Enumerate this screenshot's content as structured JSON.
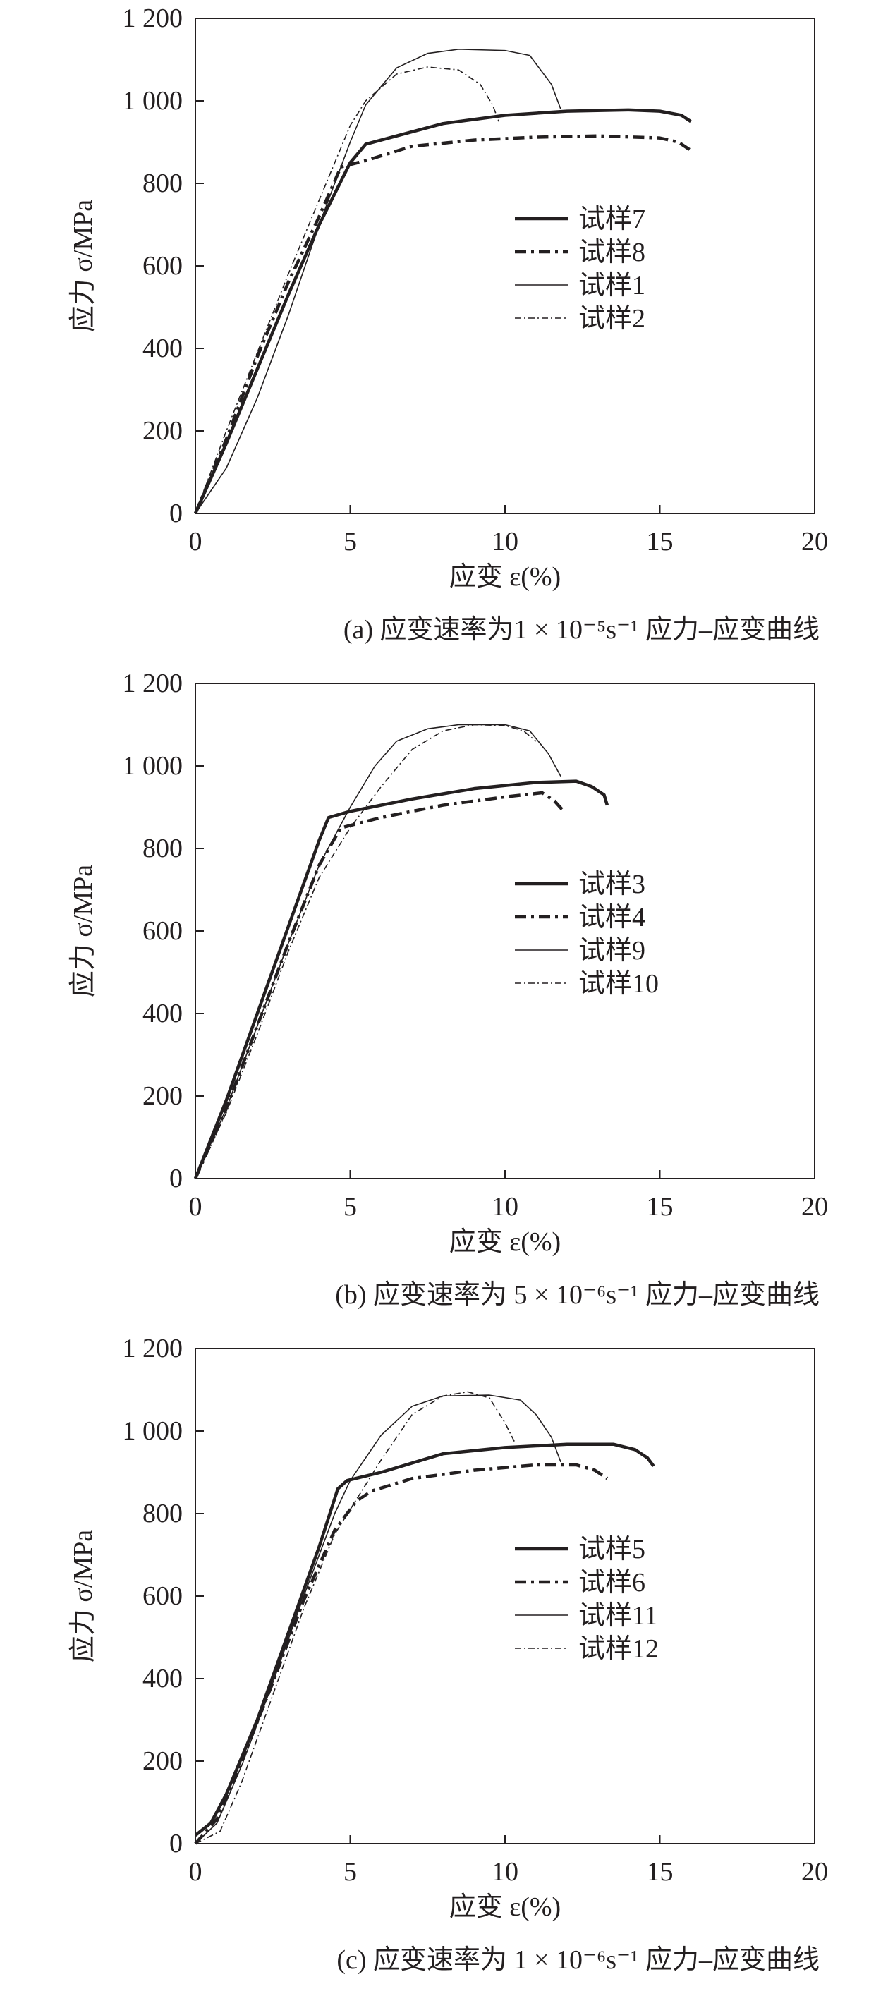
{
  "chart_data": [
    {
      "type": "line",
      "caption": "(a) 应变速率为1 × 10⁻⁵s⁻¹ 应力–应变曲线",
      "xlabel": "应变 ε(%)",
      "ylabel": "应力 σ/MPa",
      "xlim": [
        0,
        20
      ],
      "ylim": [
        0,
        1200
      ],
      "xticks": [
        0,
        5,
        10,
        15,
        20
      ],
      "xtick_labels": [
        "0",
        "5",
        "10",
        "15",
        "20"
      ],
      "yticks": [
        0,
        200,
        400,
        600,
        800,
        1000,
        1200
      ],
      "ytick_labels": [
        "0",
        "200",
        "400",
        "600",
        "800",
        "1 000",
        "1 200"
      ],
      "grid": false,
      "legend_position": "center-right",
      "series": [
        {
          "name": "试样7",
          "style": "thick-solid",
          "points": [
            [
              0,
              0
            ],
            [
              1,
              170
            ],
            [
              2,
              350
            ],
            [
              3,
              530
            ],
            [
              4,
              700
            ],
            [
              5,
              850
            ],
            [
              5.5,
              895
            ],
            [
              6,
              905
            ],
            [
              8,
              945
            ],
            [
              10,
              965
            ],
            [
              12,
              975
            ],
            [
              14,
              978
            ],
            [
              15,
              975
            ],
            [
              15.7,
              965
            ],
            [
              16,
              950
            ]
          ]
        },
        {
          "name": "试样8",
          "style": "thick-dashdot",
          "points": [
            [
              0,
              0
            ],
            [
              1,
              180
            ],
            [
              2,
              380
            ],
            [
              3,
              560
            ],
            [
              4,
              720
            ],
            [
              4.7,
              840
            ],
            [
              5.5,
              855
            ],
            [
              7,
              890
            ],
            [
              9,
              905
            ],
            [
              11,
              912
            ],
            [
              13,
              915
            ],
            [
              15,
              910
            ],
            [
              15.6,
              900
            ],
            [
              16,
              880
            ]
          ]
        },
        {
          "name": "试样1",
          "style": "thin-solid",
          "points": [
            [
              0,
              0
            ],
            [
              1,
              110
            ],
            [
              2,
              280
            ],
            [
              3,
              480
            ],
            [
              4,
              700
            ],
            [
              5,
              900
            ],
            [
              5.5,
              990
            ],
            [
              6.5,
              1080
            ],
            [
              7.5,
              1115
            ],
            [
              8.5,
              1125
            ],
            [
              10,
              1122
            ],
            [
              10.8,
              1110
            ],
            [
              11.5,
              1040
            ],
            [
              11.8,
              980
            ]
          ]
        },
        {
          "name": "试样2",
          "style": "thin-dashdot",
          "points": [
            [
              0,
              0
            ],
            [
              1,
              200
            ],
            [
              2,
              390
            ],
            [
              3,
              580
            ],
            [
              4,
              760
            ],
            [
              5,
              940
            ],
            [
              5.5,
              1000
            ],
            [
              6.5,
              1065
            ],
            [
              7.5,
              1082
            ],
            [
              8.5,
              1075
            ],
            [
              9.2,
              1040
            ],
            [
              9.6,
              990
            ],
            [
              9.8,
              950
            ]
          ]
        }
      ]
    },
    {
      "type": "line",
      "caption": "(b) 应变速率为 5 × 10⁻⁶s⁻¹ 应力–应变曲线",
      "xlabel": "应变 ε(%)",
      "ylabel": "应力 σ/MPa",
      "xlim": [
        0,
        20
      ],
      "ylim": [
        0,
        1200
      ],
      "xticks": [
        0,
        5,
        10,
        15,
        20
      ],
      "xtick_labels": [
        "0",
        "5",
        "10",
        "15",
        "20"
      ],
      "yticks": [
        0,
        200,
        400,
        600,
        800,
        1000,
        1200
      ],
      "ytick_labels": [
        "0",
        "200",
        "400",
        "600",
        "800",
        "1 000",
        "1 200"
      ],
      "grid": false,
      "legend_position": "center-right",
      "series": [
        {
          "name": "试样3",
          "style": "thick-solid",
          "points": [
            [
              0,
              0
            ],
            [
              1,
              190
            ],
            [
              2,
              400
            ],
            [
              3,
              610
            ],
            [
              4,
              820
            ],
            [
              4.3,
              875
            ],
            [
              5,
              890
            ],
            [
              7,
              920
            ],
            [
              9,
              945
            ],
            [
              11,
              960
            ],
            [
              12.3,
              963
            ],
            [
              12.8,
              950
            ],
            [
              13.2,
              930
            ],
            [
              13.3,
              905
            ]
          ]
        },
        {
          "name": "试样4",
          "style": "thick-dashdot",
          "points": [
            [
              0,
              0
            ],
            [
              1,
              170
            ],
            [
              2,
              370
            ],
            [
              3,
              570
            ],
            [
              4,
              760
            ],
            [
              4.7,
              850
            ],
            [
              6,
              875
            ],
            [
              8,
              905
            ],
            [
              10,
              925
            ],
            [
              11.2,
              935
            ],
            [
              11.6,
              915
            ],
            [
              11.9,
              890
            ]
          ]
        },
        {
          "name": "试样9",
          "style": "thin-solid",
          "points": [
            [
              0,
              0
            ],
            [
              1,
              170
            ],
            [
              2,
              370
            ],
            [
              3,
              570
            ],
            [
              4,
              760
            ],
            [
              5,
              900
            ],
            [
              5.8,
              1000
            ],
            [
              6.5,
              1060
            ],
            [
              7.5,
              1090
            ],
            [
              8.5,
              1100
            ],
            [
              10,
              1100
            ],
            [
              10.8,
              1085
            ],
            [
              11.4,
              1030
            ],
            [
              11.8,
              975
            ]
          ]
        },
        {
          "name": "试样10",
          "style": "thin-dashdot",
          "points": [
            [
              0,
              0
            ],
            [
              1,
              160
            ],
            [
              2,
              350
            ],
            [
              3,
              550
            ],
            [
              4,
              730
            ],
            [
              5,
              850
            ],
            [
              6,
              950
            ],
            [
              7,
              1040
            ],
            [
              8,
              1085
            ],
            [
              9,
              1100
            ],
            [
              10,
              1098
            ],
            [
              10.6,
              1085
            ],
            [
              11,
              1060
            ]
          ]
        }
      ]
    },
    {
      "type": "line",
      "caption": "(c) 应变速率为 1 × 10⁻⁶s⁻¹ 应力–应变曲线",
      "xlabel": "应变 ε(%)",
      "ylabel": "应力 σ/MPa",
      "xlim": [
        0,
        20
      ],
      "ylim": [
        0,
        1200
      ],
      "xticks": [
        0,
        5,
        10,
        15,
        20
      ],
      "xtick_labels": [
        "0",
        "5",
        "10",
        "15",
        "20"
      ],
      "yticks": [
        0,
        200,
        400,
        600,
        800,
        1000,
        1200
      ],
      "ytick_labels": [
        "0",
        "200",
        "400",
        "600",
        "800",
        "1 000",
        "1 200"
      ],
      "grid": false,
      "legend_position": "center-right",
      "series": [
        {
          "name": "试样5",
          "style": "thick-solid",
          "points": [
            [
              0,
              20
            ],
            [
              0.5,
              50
            ],
            [
              1,
              120
            ],
            [
              2,
              300
            ],
            [
              3,
              510
            ],
            [
              4,
              720
            ],
            [
              4.6,
              860
            ],
            [
              4.9,
              880
            ],
            [
              6,
              900
            ],
            [
              8,
              945
            ],
            [
              10,
              960
            ],
            [
              12,
              968
            ],
            [
              13.5,
              968
            ],
            [
              14.2,
              955
            ],
            [
              14.6,
              935
            ],
            [
              14.8,
              915
            ]
          ]
        },
        {
          "name": "试样6",
          "style": "thick-dashdot",
          "points": [
            [
              0,
              0
            ],
            [
              0.7,
              60
            ],
            [
              1.5,
              200
            ],
            [
              2.5,
              390
            ],
            [
              3.5,
              590
            ],
            [
              4.5,
              760
            ],
            [
              5.2,
              830
            ],
            [
              5.7,
              855
            ],
            [
              7,
              885
            ],
            [
              9,
              905
            ],
            [
              11,
              918
            ],
            [
              12.3,
              918
            ],
            [
              12.9,
              905
            ],
            [
              13.3,
              885
            ]
          ]
        },
        {
          "name": "试样11",
          "style": "thin-solid",
          "points": [
            [
              0,
              0
            ],
            [
              0.7,
              50
            ],
            [
              1.5,
              190
            ],
            [
              2.5,
              390
            ],
            [
              3.5,
              600
            ],
            [
              4.5,
              800
            ],
            [
              5,
              880
            ],
            [
              6,
              990
            ],
            [
              7,
              1060
            ],
            [
              8,
              1085
            ],
            [
              9.5,
              1087
            ],
            [
              10.5,
              1075
            ],
            [
              11,
              1040
            ],
            [
              11.5,
              985
            ],
            [
              11.8,
              925
            ]
          ]
        },
        {
          "name": "试样12",
          "style": "thin-dashdot",
          "points": [
            [
              0,
              0
            ],
            [
              0.8,
              30
            ],
            [
              1.5,
              150
            ],
            [
              2.5,
              360
            ],
            [
              3.5,
              570
            ],
            [
              4.5,
              750
            ],
            [
              5,
              810
            ],
            [
              6,
              930
            ],
            [
              7,
              1040
            ],
            [
              8,
              1085
            ],
            [
              8.8,
              1095
            ],
            [
              9.5,
              1080
            ],
            [
              10,
              1020
            ],
            [
              10.3,
              975
            ]
          ]
        }
      ]
    }
  ]
}
